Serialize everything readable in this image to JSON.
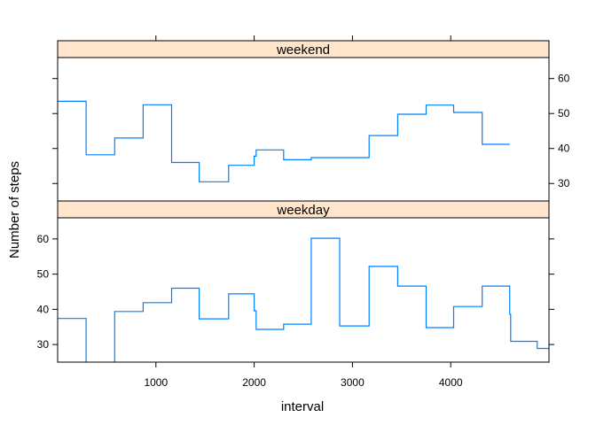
{
  "chart_data": {
    "type": "line",
    "step": true,
    "xlabel": "interval",
    "ylabel": "Number of steps",
    "xlim": [
      0,
      5000
    ],
    "xticks": [
      1000,
      2000,
      3000,
      4000
    ],
    "ylim": [
      25,
      66
    ],
    "yticks": [
      30,
      40,
      50,
      60
    ],
    "line_color": "#0080ff",
    "strip_color": "#ffe5cc",
    "panels": [
      {
        "name": "weekend",
        "x": [
          0,
          290,
          290,
          580,
          580,
          870,
          870,
          1160,
          1160,
          1440,
          1440,
          1740,
          1740,
          2000,
          2000,
          2020,
          2020,
          2300,
          2300,
          2580,
          2580,
          2870,
          2870,
          3170,
          3170,
          3460,
          3460,
          3750,
          3750,
          4030,
          4030,
          4320,
          4320,
          4600
        ],
        "y": [
          53.5,
          53.5,
          38.2,
          38.2,
          43,
          43,
          52.5,
          52.5,
          36,
          36,
          30.5,
          30.5,
          35.2,
          35.2,
          37.8,
          37.8,
          39.6,
          39.6,
          36.8,
          36.8,
          37.4,
          37.4,
          37.4,
          37.4,
          43.7,
          43.7,
          49.8,
          49.8,
          52.4,
          52.4,
          50.3,
          50.3,
          41.2,
          41.2
        ]
      },
      {
        "name": "weekday",
        "x": [
          0,
          290,
          290,
          null,
          580,
          580,
          870,
          870,
          1160,
          1160,
          1440,
          1440,
          1740,
          1740,
          2000,
          2000,
          2020,
          2020,
          2300,
          2300,
          2580,
          2580,
          2870,
          2870,
          3170,
          3170,
          3460,
          3460,
          3750,
          3750,
          4030,
          4030,
          4320,
          4320,
          4600,
          4600,
          4610,
          4610,
          4880,
          4880,
          5000
        ],
        "y": [
          37.4,
          37.4,
          25,
          null,
          25,
          39.4,
          39.4,
          41.9,
          41.9,
          46,
          46,
          37.3,
          37.3,
          44.4,
          44.4,
          39.6,
          39.6,
          34.3,
          34.3,
          35.8,
          35.8,
          60.2,
          60.2,
          35.3,
          35.3,
          52.2,
          52.2,
          46.6,
          46.6,
          34.8,
          34.8,
          40.8,
          40.8,
          46.6,
          46.6,
          38.6,
          38.6,
          30.9,
          30.9,
          28.9,
          28.9
        ]
      }
    ]
  }
}
